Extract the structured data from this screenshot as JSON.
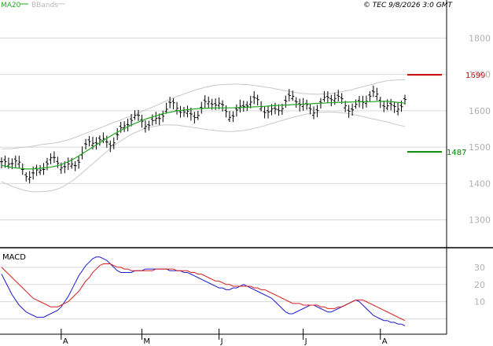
{
  "header": {
    "legend_ma": "MA20",
    "legend_bbands": "BBands",
    "copyright": "© TEC 9/8/2026 3:0 GMT"
  },
  "colors": {
    "background": "#ffffff",
    "grid": "#d9d9d9",
    "price_bars": "#000000",
    "ma20": "#22a822",
    "bbands": "#c8c8c8",
    "resistance": "#cc0000",
    "support": "#008800",
    "macd": "#1a1acc",
    "signal": "#d42020"
  },
  "chart_data": [
    {
      "type": "ohlc",
      "panel": "price",
      "y_ticks": [
        1300,
        1400,
        1500,
        1600,
        1700,
        1800
      ],
      "y_tick_labels": [
        "1300",
        "1400",
        "1500",
        "1600",
        "1700",
        "1800"
      ],
      "ylim": [
        1230,
        1870
      ],
      "x_month_labels": [
        "A",
        "M",
        "J",
        "J",
        "A"
      ],
      "x_month_start_index": [
        17,
        40,
        62,
        86,
        108
      ],
      "bar_count": 116,
      "series": [
        {
          "name": "MA20",
          "values_from": "first 25 bars then rising",
          "values": [
            1450,
            1448,
            1446,
            1444,
            1443,
            1442,
            1441,
            1440,
            1440,
            1440,
            1441,
            1442,
            1443,
            1444,
            1445,
            1447,
            1449,
            1452,
            1456,
            1460,
            1465,
            1470,
            1476,
            1482,
            1488,
            1494,
            1500,
            1506,
            1512,
            1518,
            1524,
            1530,
            1536,
            1541,
            1546,
            1551,
            1556,
            1561,
            1565,
            1569,
            1573,
            1577,
            1580,
            1583,
            1586,
            1589,
            1592,
            1594,
            1596,
            1598,
            1600,
            1601,
            1602,
            1603,
            1604,
            1605,
            1606,
            1606,
            1607,
            1607,
            1608,
            1608,
            1608,
            1608,
            1608,
            1608,
            1608,
            1609,
            1609,
            1609,
            1610,
            1610,
            1611,
            1611,
            1612,
            1612,
            1613,
            1614,
            1614,
            1615,
            1615,
            1616,
            1616,
            1617,
            1617,
            1618,
            1618,
            1619,
            1619,
            1620,
            1620,
            1621,
            1621,
            1622,
            1622,
            1623,
            1623,
            1623,
            1624,
            1624,
            1624,
            1625,
            1625,
            1625,
            1625,
            1625,
            1625,
            1626,
            1626,
            1626,
            1626,
            1625,
            1624,
            1623,
            1622,
            1621
          ]
        },
        {
          "name": "BBands upper"
        },
        {
          "name": "BBands lower"
        }
      ],
      "levels": [
        {
          "value": 1699,
          "label": "1699",
          "role": "resistance"
        },
        {
          "value": 1487,
          "label": "1487",
          "role": "support"
        }
      ]
    },
    {
      "type": "line",
      "panel": "macd",
      "title": "MACD",
      "y_ticks": [
        10,
        20,
        30
      ],
      "y_tick_labels": [
        "10",
        "20",
        "30"
      ],
      "ylim": [
        -8,
        40
      ],
      "series": [
        {
          "name": "MACD",
          "values": [
            26,
            22,
            18,
            14,
            11,
            8,
            6,
            4,
            3,
            2,
            1,
            1,
            1,
            2,
            3,
            4,
            5,
            7,
            10,
            13,
            17,
            21,
            25,
            28,
            31,
            33,
            35,
            36,
            36,
            35,
            34,
            32,
            30,
            28,
            27,
            27,
            27,
            27,
            28,
            28,
            28,
            29,
            29,
            29,
            29,
            29,
            29,
            29,
            28,
            28,
            28,
            28,
            27,
            27,
            26,
            25,
            24,
            23,
            22,
            21,
            20,
            19,
            18,
            18,
            17,
            17,
            18,
            18,
            19,
            20,
            19,
            18,
            17,
            16,
            15,
            14,
            13,
            12,
            10,
            8,
            6,
            4,
            3,
            3,
            4,
            5,
            6,
            7,
            8,
            8,
            7,
            6,
            5,
            4,
            4,
            5,
            6,
            7,
            8,
            9,
            10,
            11,
            10,
            8,
            6,
            4,
            2,
            1,
            0,
            -1,
            -1,
            -2,
            -2,
            -3,
            -3,
            -4
          ]
        },
        {
          "name": "Signal",
          "values": [
            30,
            28,
            26,
            24,
            22,
            20,
            18,
            16,
            14,
            12,
            11,
            10,
            9,
            8,
            7,
            7,
            7,
            8,
            9,
            10,
            12,
            14,
            16,
            19,
            22,
            24,
            27,
            29,
            31,
            32,
            32,
            32,
            31,
            30,
            30,
            29,
            29,
            28,
            28,
            28,
            28,
            28,
            28,
            28,
            29,
            29,
            29,
            29,
            29,
            29,
            28,
            28,
            28,
            28,
            27,
            27,
            26,
            26,
            25,
            24,
            23,
            22,
            22,
            21,
            20,
            20,
            19,
            19,
            19,
            19,
            19,
            19,
            18,
            18,
            17,
            17,
            16,
            15,
            14,
            13,
            12,
            11,
            10,
            9,
            9,
            9,
            8,
            8,
            8,
            8,
            8,
            7,
            7,
            6,
            6,
            6,
            7,
            7,
            8,
            9,
            10,
            11,
            11,
            11,
            10,
            9,
            8,
            7,
            6,
            5,
            4,
            3,
            2,
            1,
            0,
            -1
          ]
        }
      ]
    }
  ]
}
